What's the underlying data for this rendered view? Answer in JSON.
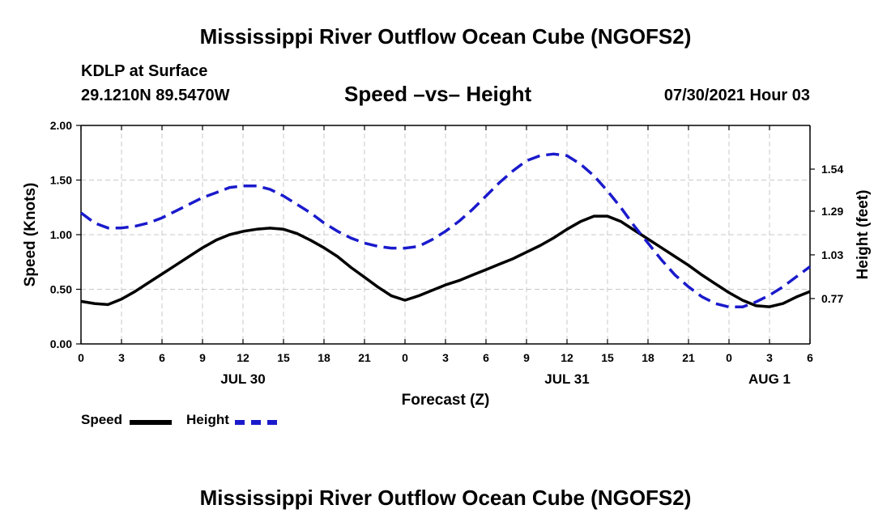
{
  "header": {
    "title_top": "Mississippi River Outflow Ocean Cube (NGOFS2)",
    "station": "KDLP at Surface",
    "coords": "29.1210N  89.5470W",
    "subtitle": "Speed –vs– Height",
    "datetime": "07/30/2021 Hour 03"
  },
  "footer": {
    "title_bottom": "Mississippi River Outflow Ocean Cube (NGOFS2)"
  },
  "legend": {
    "speed_label": "Speed",
    "height_label": "Height",
    "speed_color": "#000000",
    "height_color": "#1a1acc"
  },
  "chart_data": {
    "type": "line",
    "xlabel": "Forecast (Z)",
    "ylabel": "Speed (Knots)",
    "ylabel_right": "Height (feet)",
    "xlim": [
      0,
      54
    ],
    "ylim": [
      0,
      2
    ],
    "ylim_right": [
      0.5,
      1.8
    ],
    "grid": true,
    "x_ticks": [
      0,
      3,
      6,
      9,
      12,
      15,
      18,
      21,
      24,
      27,
      30,
      33,
      36,
      39,
      42,
      45,
      48,
      51,
      54
    ],
    "x_tick_labels": [
      "0",
      "3",
      "6",
      "9",
      "12",
      "15",
      "18",
      "21",
      "0",
      "3",
      "6",
      "9",
      "12",
      "15",
      "18",
      "21",
      "0",
      "3",
      "6"
    ],
    "day_labels": [
      {
        "x": 12,
        "label": "JUL 30"
      },
      {
        "x": 36,
        "label": "JUL 31"
      },
      {
        "x": 51,
        "label": "AUG 1"
      }
    ],
    "y_ticks": [
      0,
      0.5,
      1,
      1.5,
      2
    ],
    "y_tick_labels": [
      "0.00",
      "0.50",
      "1.00",
      "1.50",
      "2.00"
    ],
    "y_right_ticks": [
      0.77,
      1.03,
      1.29,
      1.54
    ],
    "y_right_tick_labels": [
      "0.77",
      "1.03",
      "1.29",
      "1.54"
    ],
    "series": [
      {
        "name": "Speed",
        "axis": "left",
        "style": "solid",
        "color": "#000000",
        "x": [
          0,
          1,
          2,
          3,
          4,
          5,
          6,
          7,
          8,
          9,
          10,
          11,
          12,
          13,
          14,
          15,
          16,
          17,
          18,
          19,
          20,
          21,
          22,
          23,
          24,
          25,
          26,
          27,
          28,
          29,
          30,
          31,
          32,
          33,
          34,
          35,
          36,
          37,
          38,
          39,
          40,
          41,
          42,
          43,
          44,
          45,
          46,
          47,
          48,
          49,
          50,
          51,
          52,
          53,
          54
        ],
        "values": [
          0.39,
          0.37,
          0.36,
          0.41,
          0.48,
          0.56,
          0.64,
          0.72,
          0.8,
          0.88,
          0.95,
          1.0,
          1.03,
          1.05,
          1.06,
          1.05,
          1.01,
          0.95,
          0.88,
          0.8,
          0.7,
          0.61,
          0.52,
          0.44,
          0.4,
          0.44,
          0.49,
          0.54,
          0.58,
          0.63,
          0.68,
          0.73,
          0.78,
          0.84,
          0.9,
          0.97,
          1.05,
          1.12,
          1.17,
          1.17,
          1.12,
          1.04,
          0.96,
          0.88,
          0.8,
          0.72,
          0.63,
          0.55,
          0.47,
          0.4,
          0.35,
          0.34,
          0.37,
          0.43,
          0.48
        ]
      },
      {
        "name": "Height",
        "axis": "right",
        "style": "dashed",
        "color": "#1a1acc",
        "x": [
          0,
          1,
          2,
          3,
          4,
          5,
          6,
          7,
          8,
          9,
          10,
          11,
          12,
          13,
          14,
          15,
          16,
          17,
          18,
          19,
          20,
          21,
          22,
          23,
          24,
          25,
          26,
          27,
          28,
          29,
          30,
          31,
          32,
          33,
          34,
          35,
          36,
          37,
          38,
          39,
          40,
          41,
          42,
          43,
          44,
          45,
          46,
          47,
          48,
          49,
          50,
          51,
          52,
          53,
          54
        ],
        "values": [
          1.28,
          1.22,
          1.19,
          1.19,
          1.2,
          1.22,
          1.25,
          1.29,
          1.33,
          1.37,
          1.4,
          1.43,
          1.44,
          1.44,
          1.42,
          1.38,
          1.33,
          1.28,
          1.22,
          1.17,
          1.13,
          1.1,
          1.08,
          1.07,
          1.07,
          1.08,
          1.12,
          1.17,
          1.23,
          1.3,
          1.38,
          1.46,
          1.53,
          1.59,
          1.62,
          1.63,
          1.62,
          1.57,
          1.5,
          1.41,
          1.31,
          1.2,
          1.1,
          1.0,
          0.91,
          0.84,
          0.78,
          0.74,
          0.72,
          0.72,
          0.75,
          0.79,
          0.84,
          0.9,
          0.96
        ]
      }
    ]
  }
}
